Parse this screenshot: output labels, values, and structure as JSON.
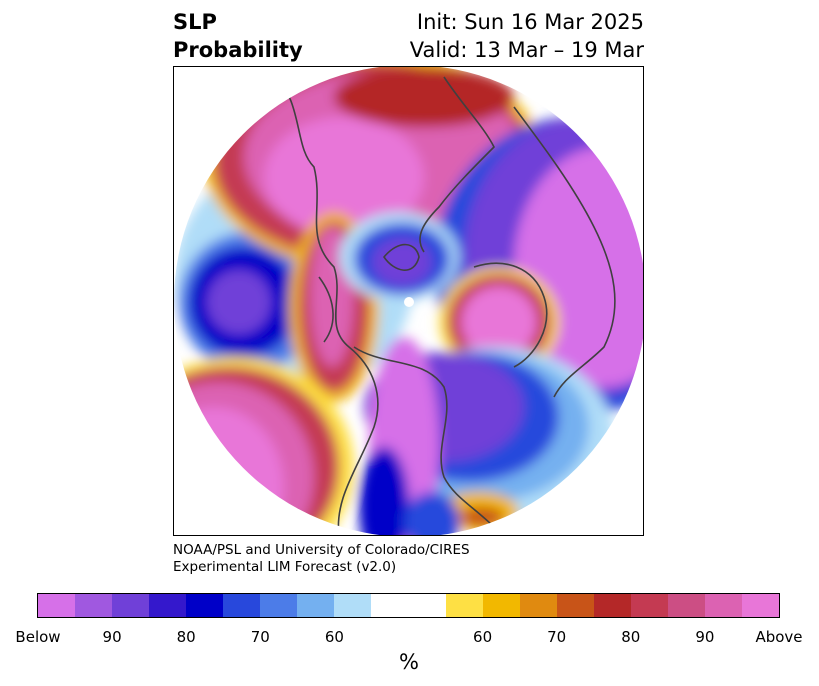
{
  "title": {
    "left_line1": "SLP",
    "left_line2": "Probability",
    "right_line1": "Init: Sun 16 Mar 2025",
    "right_line2": "Valid: 13 Mar – 19 Mar"
  },
  "credit": {
    "line1": "NOAA/PSL and University of Colorado/CIRES",
    "line2": "Experimental LIM Forecast (v2.0)"
  },
  "colorbar": {
    "unit": "%",
    "colors": [
      "#d670e8",
      "#a058e0",
      "#7040d8",
      "#3418cc",
      "#0000c8",
      "#2848dc",
      "#4c7ce8",
      "#74b0f0",
      "#b0ddf8",
      "#ffffff",
      "#ffffff",
      "#fee044",
      "#f2b800",
      "#e08a10",
      "#c85418",
      "#b42828",
      "#c43a52",
      "#cc4e84",
      "#dc62b2",
      "#e876d8"
    ],
    "labels": [
      "Below",
      "90",
      "80",
      "70",
      "60",
      "60",
      "70",
      "80",
      "90",
      "Above"
    ]
  },
  "map": {
    "projection": "north-polar-stereographic",
    "field": "SLP probability",
    "regions": [
      {
        "name": "Europe / Western Russia",
        "category": "above",
        "level": "90+"
      },
      {
        "name": "Siberia / East Asia",
        "category": "below",
        "level": "90+"
      },
      {
        "name": "North Pacific / Alaska",
        "category": "above",
        "level": "90+"
      },
      {
        "name": "Canada / Western North America",
        "category": "below",
        "level": "80-90"
      },
      {
        "name": "North Atlantic (mid-latitude)",
        "category": "below",
        "level": "80-90"
      },
      {
        "name": "Eastern North Atlantic",
        "category": "above",
        "level": "90+"
      },
      {
        "name": "Arctic Ocean / Greenland",
        "category": "below",
        "level": "70-80"
      },
      {
        "name": "Western United States",
        "category": "above",
        "level": "80-90"
      }
    ]
  }
}
